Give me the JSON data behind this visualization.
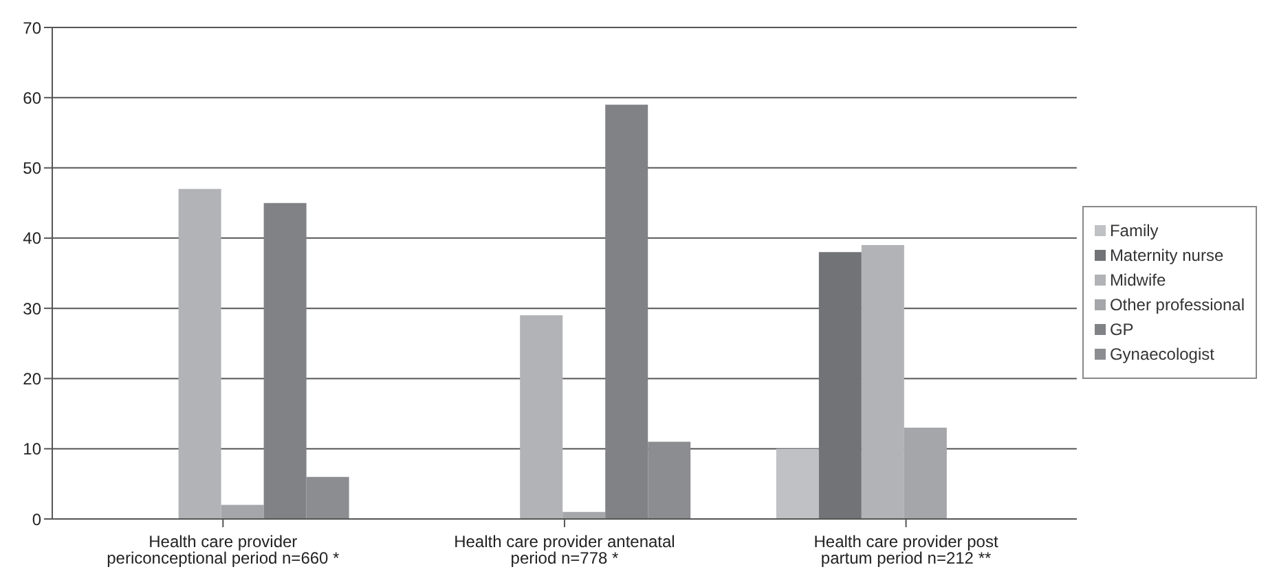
{
  "chart_data": {
    "type": "bar",
    "categories": [
      "Health care provider periconceptional period n=660 *",
      "Health care provider antenatal period n=778 *",
      "Health care provider post partum period n=212 **"
    ],
    "series": [
      {
        "name": "Family",
        "color": "#c0c1c4",
        "values": [
          0,
          0,
          10
        ]
      },
      {
        "name": "Maternity nurse",
        "color": "#727377",
        "values": [
          0,
          0,
          38
        ]
      },
      {
        "name": "Midwife",
        "color": "#b2b3b6",
        "values": [
          47,
          29,
          39
        ]
      },
      {
        "name": "Other professional",
        "color": "#a5a6a9",
        "values": [
          2,
          1,
          13
        ]
      },
      {
        "name": "GP",
        "color": "#818286",
        "values": [
          45,
          59,
          0
        ]
      },
      {
        "name": "Gynaecologist",
        "color": "#8c8d91",
        "values": [
          6,
          11,
          0
        ]
      }
    ],
    "ylim": [
      0,
      70
    ],
    "yticks": [
      0,
      10,
      20,
      30,
      40,
      50,
      60,
      70
    ],
    "grid": "y",
    "legend": "right"
  }
}
